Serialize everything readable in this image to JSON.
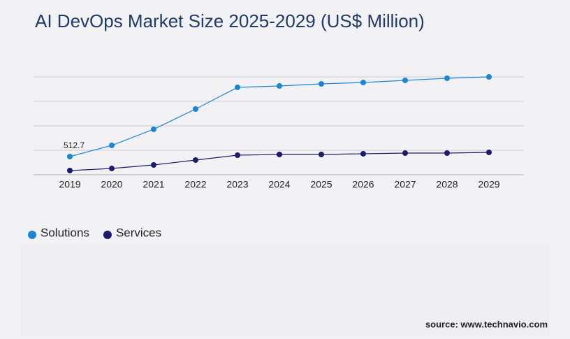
{
  "chart_data": {
    "type": "line",
    "title": "AI DevOps Market Size 2025-2029 (US$ Million)",
    "categories": [
      "2019",
      "2020",
      "2021",
      "2022",
      "2023",
      "2024",
      "2025",
      "2026",
      "2027",
      "2028",
      "2029"
    ],
    "series": [
      {
        "name": "Solutions",
        "color": "#1a86d8",
        "values": [
          512.7,
          828,
          1282,
          1853,
          2464,
          2504,
          2563,
          2602,
          2662,
          2721,
          2760
        ]
      },
      {
        "name": "Services",
        "color": "#1c1a6e",
        "values": [
          118,
          177,
          276,
          414,
          552,
          572,
          572,
          592,
          611,
          611,
          631
        ]
      }
    ],
    "ylim": [
      0,
      2760
    ],
    "grid": true,
    "legend": "bottom-left",
    "source": "source: www.technavio.com"
  }
}
